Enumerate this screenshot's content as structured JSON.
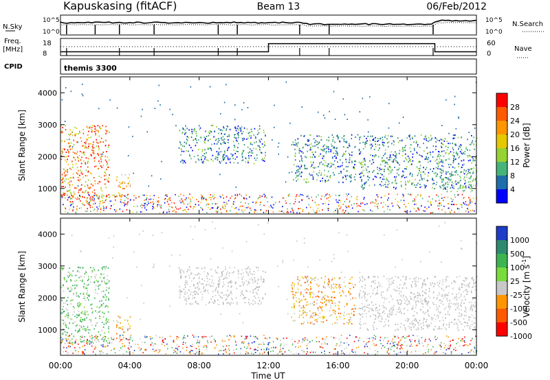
{
  "header": {
    "radar": "Kapuskasing (fitACF)",
    "beam": "Beam 13",
    "date": "06/Feb/2012"
  },
  "chart_data": [
    {
      "type": "line",
      "panel": "noise",
      "left_label": "N.Sky",
      "left_ticks": [
        "10^5",
        "10^0"
      ],
      "right_label": "N.Search",
      "right_ticks": [
        "10^5",
        "10^0"
      ]
    },
    {
      "type": "line",
      "panel": "frequency",
      "left_label_1": "Freq.",
      "left_label_2": "[MHz]",
      "left_ticks": [
        "18",
        "8"
      ],
      "right_label": "Nave",
      "right_ticks": [
        "60",
        "0"
      ],
      "freq_steps": [
        {
          "x_hours": 0,
          "mhz": 9.4
        },
        {
          "x_hours": 12,
          "mhz": 9.4
        },
        {
          "x_hours": 12,
          "mhz": 16.0
        },
        {
          "x_hours": 21.6,
          "mhz": 16.0
        },
        {
          "x_hours": 21.6,
          "mhz": 9.4
        },
        {
          "x_hours": 24,
          "mhz": 9.4
        }
      ]
    },
    {
      "type": "table",
      "panel": "cpid",
      "label": "CPID",
      "value": "themis 3300"
    },
    {
      "type": "heatmap",
      "panel": "power",
      "ylabel": "Slant Range [km]",
      "yticks": [
        "4000",
        "3000",
        "2000",
        "1000"
      ],
      "ytick_values": [
        4000,
        3000,
        2000,
        1000
      ],
      "ylim": [
        200,
        4500
      ],
      "colorbar_label": "Power [dB]",
      "colorbar_ticks": [
        "28",
        "24",
        "20",
        "16",
        "12",
        "8",
        "4"
      ],
      "colorbar_colors": [
        "#ff0000",
        "#ff5a00",
        "#ff9600",
        "#e6c800",
        "#96d232",
        "#46b478",
        "#1e6eaa",
        "#0000ff"
      ],
      "echo_regions": [
        {
          "t0": 0.0,
          "t1": 2.8,
          "r0": 600,
          "r1": 3000,
          "core": "red"
        },
        {
          "t0": 3.2,
          "t1": 4.0,
          "r0": 700,
          "r1": 1500,
          "core": "orange"
        },
        {
          "t0": 6.8,
          "t1": 11.8,
          "r0": 1800,
          "r1": 3000,
          "core": "blue"
        },
        {
          "t0": 13.3,
          "t1": 17.0,
          "r0": 1200,
          "r1": 2700,
          "core": "blue"
        },
        {
          "t0": 17.2,
          "t1": 24.0,
          "r0": 1000,
          "r1": 2700,
          "core": "blue"
        },
        {
          "t0": 22.0,
          "t1": 24.0,
          "r0": 900,
          "r1": 1600,
          "core": "green"
        }
      ]
    },
    {
      "type": "heatmap",
      "panel": "velocity",
      "ylabel": "Slant Range [km]",
      "yticks": [
        "4000",
        "3000",
        "2000",
        "1000"
      ],
      "ytick_values": [
        4000,
        3000,
        2000,
        1000
      ],
      "ylim": [
        200,
        4500
      ],
      "xticks": [
        "00:00",
        "04:00",
        "08:00",
        "12:00",
        "16:00",
        "20:00",
        "00:00"
      ],
      "xtick_values": [
        0,
        4,
        8,
        12,
        16,
        20,
        24
      ],
      "xlim": [
        0,
        24
      ],
      "xlabel": "Time UT",
      "colorbar_label": "Velocity [m s",
      "colorbar_label_sup": "-1",
      "colorbar_label_end": "]",
      "colorbar_ticks": [
        "1000",
        "500",
        "100",
        "25",
        "-25",
        "-100",
        "-500",
        "-1000"
      ],
      "colorbar_colors": [
        "#1e3cc8",
        "#2e8a6e",
        "#3cb450",
        "#78dc3c",
        "#c8c8c8",
        "#ff9600",
        "#ff5a00",
        "#ff0000"
      ],
      "echo_regions": [
        {
          "t0": 0.0,
          "t1": 2.8,
          "r0": 600,
          "r1": 3000,
          "core": "green"
        },
        {
          "t0": 3.2,
          "t1": 4.0,
          "r0": 700,
          "r1": 1500,
          "core": "orange"
        },
        {
          "t0": 6.8,
          "t1": 11.8,
          "r0": 1800,
          "r1": 3000,
          "core": "gray"
        },
        {
          "t0": 13.3,
          "t1": 17.0,
          "r0": 1200,
          "r1": 2700,
          "core": "orange"
        },
        {
          "t0": 17.2,
          "t1": 24.0,
          "r0": 1000,
          "r1": 2700,
          "core": "gray"
        }
      ]
    }
  ]
}
